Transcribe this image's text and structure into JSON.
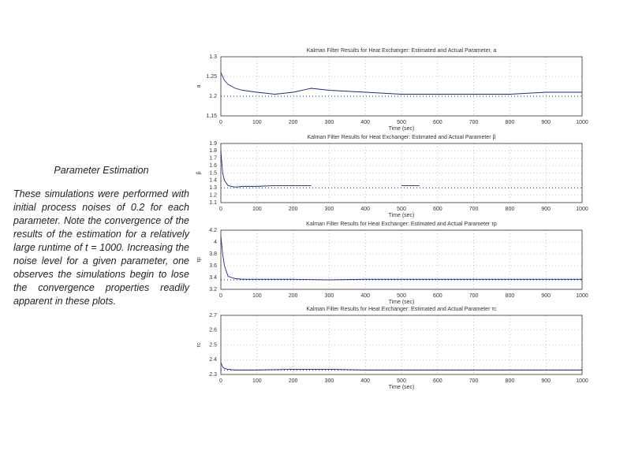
{
  "text": {
    "heading": "Parameter Estimation",
    "body": "These simulations were performed with initial process noises of 0.2 for each parameter. Note the convergence of the results of the estimation for a relatively large runtime of t = 1000. Increasing the noise level for a given parameter, one observes the simulations begin to lose the convergence properties readily apparent in these plots."
  },
  "chart_data": [
    {
      "type": "line",
      "title": "Kalman Filter Results for Heat Exchanger: Estimated and Actual Parameter, a",
      "x_label": "Time (sec)",
      "y_label": "a",
      "xlim": [
        0,
        1000
      ],
      "xticks": [
        0,
        100,
        200,
        300,
        400,
        500,
        600,
        700,
        800,
        900,
        1000
      ],
      "ylim": [
        1.15,
        1.3
      ],
      "yticks": [
        1.15,
        1.2,
        1.25,
        1.3
      ],
      "grid": true,
      "series": [
        {
          "color": "#1a2a8a",
          "style": "solid",
          "x": [
            0,
            10,
            20,
            40,
            60,
            100,
            150,
            200,
            250,
            300,
            400,
            500,
            600,
            700,
            800,
            900,
            1000
          ],
          "values": [
            1.26,
            1.24,
            1.23,
            1.22,
            1.215,
            1.21,
            1.205,
            1.21,
            1.22,
            1.215,
            1.21,
            1.205,
            1.205,
            1.205,
            1.205,
            1.21,
            1.21
          ]
        },
        {
          "color": "#1a2a8a",
          "style": "dotted",
          "x": [
            0,
            1000
          ],
          "values": [
            1.2,
            1.2
          ]
        }
      ]
    },
    {
      "type": "line",
      "title": "Kalman Filter Results for Heat Exchanger: Estimated and Actual Parameter β",
      "x_label": "Time (sec)",
      "y_label": "β",
      "xlim": [
        0,
        1000
      ],
      "xticks": [
        0,
        100,
        200,
        300,
        400,
        500,
        600,
        700,
        800,
        900,
        1000
      ],
      "ylim": [
        1.1,
        1.9
      ],
      "yticks": [
        1.1,
        1.2,
        1.3,
        1.4,
        1.5,
        1.6,
        1.7,
        1.8,
        1.9
      ],
      "grid": true,
      "series": [
        {
          "color": "#1a2a8a",
          "style": "solid",
          "x": [
            0,
            5,
            10,
            20,
            40,
            60,
            100,
            150,
            200,
            250,
            300,
            400,
            500,
            550,
            600,
            700,
            800,
            900,
            1000
          ],
          "values": [
            1.8,
            1.5,
            1.4,
            1.33,
            1.31,
            1.32,
            1.32,
            1.33,
            1.33,
            1.33,
            null,
            null,
            1.33,
            1.33,
            null,
            null,
            null,
            null,
            null
          ]
        },
        {
          "color": "#1a2a8a",
          "style": "dotted",
          "x": [
            0,
            1000
          ],
          "values": [
            1.3,
            1.3
          ]
        }
      ]
    },
    {
      "type": "line",
      "title": "Kalman Filter Results for Heat Exchanger: Estimated and Actual Parameter τp",
      "x_label": "Time (sec)",
      "y_label": "τp",
      "xlim": [
        0,
        1000
      ],
      "xticks": [
        0,
        100,
        200,
        300,
        400,
        500,
        600,
        700,
        800,
        900,
        1000
      ],
      "ylim": [
        3.2,
        4.2
      ],
      "yticks": [
        3.2,
        3.4,
        3.6,
        3.8,
        4,
        4.2
      ],
      "grid": true,
      "series": [
        {
          "color": "#1a2a8a",
          "style": "solid",
          "x": [
            0,
            5,
            10,
            20,
            40,
            60,
            100,
            200,
            300,
            400,
            500,
            600,
            700,
            800,
            900,
            1000
          ],
          "values": [
            4.1,
            3.8,
            3.6,
            3.42,
            3.38,
            3.37,
            3.37,
            3.37,
            3.36,
            3.37,
            3.37,
            3.37,
            3.37,
            3.37,
            3.37,
            3.37
          ]
        },
        {
          "color": "#1a2a8a",
          "style": "dotted",
          "x": [
            0,
            1000
          ],
          "values": [
            3.36,
            3.36
          ]
        }
      ]
    },
    {
      "type": "line",
      "title": "Kalman Filter Results for Heat Exchanger: Estimated and Actual Parameter τc",
      "x_label": "Time (sec)",
      "y_label": "τc",
      "xlim": [
        0,
        1000
      ],
      "xticks": [
        0,
        100,
        200,
        300,
        400,
        500,
        600,
        700,
        800,
        900,
        1000
      ],
      "ylim": [
        2.3,
        2.7
      ],
      "yticks": [
        2.3,
        2.4,
        2.5,
        2.6,
        2.7
      ],
      "grid": true,
      "series": [
        {
          "color": "#1a2a8a",
          "style": "solid",
          "x": [
            0,
            5,
            10,
            20,
            40,
            100,
            200,
            300,
            400,
            500,
            600,
            700,
            800,
            900,
            1000
          ],
          "values": [
            2.38,
            2.35,
            2.34,
            2.335,
            2.33,
            2.33,
            2.335,
            2.335,
            2.33,
            2.33,
            2.33,
            2.33,
            2.33,
            2.33,
            2.33
          ]
        },
        {
          "color": "#1a2a8a",
          "style": "dotted",
          "x": [
            0,
            1000
          ],
          "values": [
            2.33,
            2.33
          ]
        }
      ]
    }
  ]
}
